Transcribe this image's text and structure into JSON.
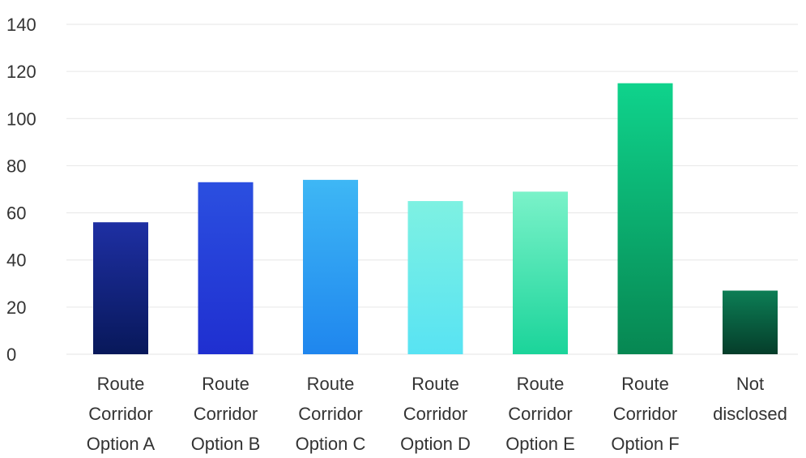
{
  "chart_data": {
    "type": "bar",
    "title": "",
    "xlabel": "",
    "ylabel": "",
    "ylim": [
      0,
      140
    ],
    "yticks": [
      0,
      20,
      40,
      60,
      80,
      100,
      120,
      140
    ],
    "grid": true,
    "categories": [
      [
        "Route",
        "Corridor",
        "Option A"
      ],
      [
        "Route",
        "Corridor",
        "Option B"
      ],
      [
        "Route",
        "Corridor",
        "Option C"
      ],
      [
        "Route",
        "Corridor",
        "Option D"
      ],
      [
        "Route",
        "Corridor",
        "Option E"
      ],
      [
        "Route",
        "Corridor",
        "Option F"
      ],
      [
        "Not",
        "disclosed"
      ]
    ],
    "values": [
      56,
      73,
      74,
      65,
      69,
      115,
      27
    ],
    "bar_gradients": [
      [
        "#1e2fa3",
        "#08185a"
      ],
      [
        "#2b4fe0",
        "#1f2fd0"
      ],
      [
        "#3eb7f5",
        "#1f86ee"
      ],
      [
        "#7ef1e2",
        "#58e3f3"
      ],
      [
        "#7af2c9",
        "#1bd49a"
      ],
      [
        "#0fd38c",
        "#078752"
      ],
      [
        "#0c7e55",
        "#053d2a"
      ]
    ]
  }
}
